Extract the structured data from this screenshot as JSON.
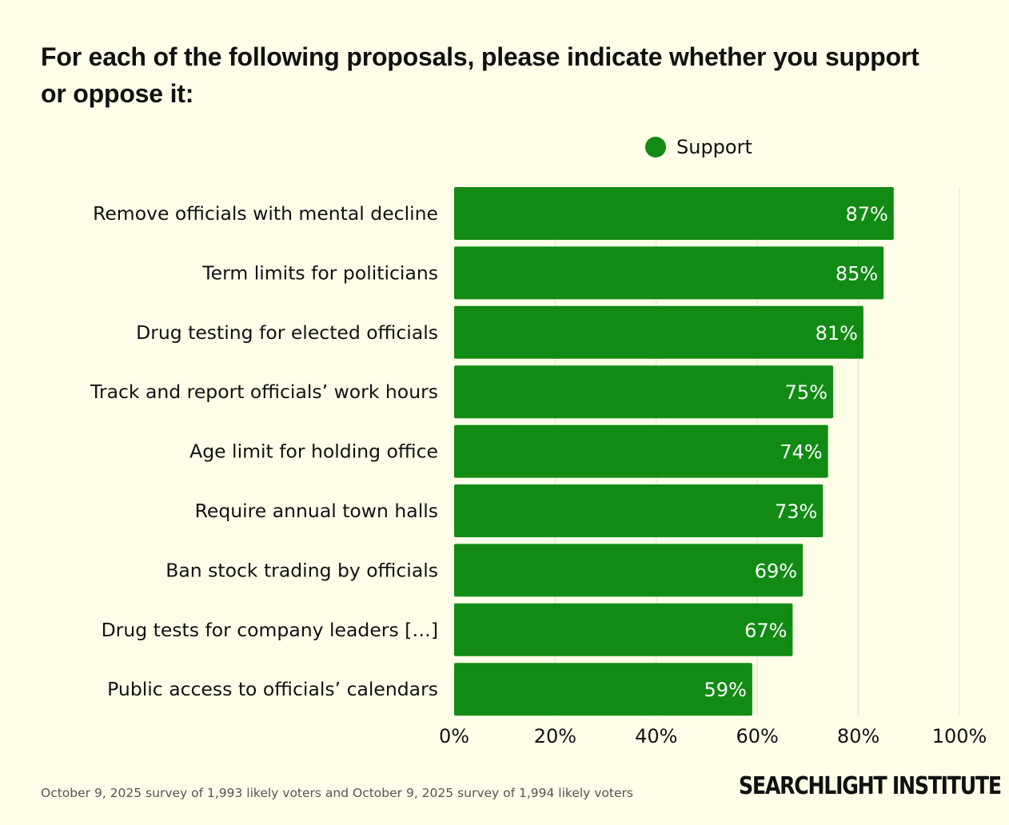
{
  "chart_data": {
    "type": "bar",
    "orientation": "horizontal",
    "title": "For each of the following proposals, please indicate whether you support or oppose it:",
    "categories": [
      "Remove officials with mental decline",
      "Term limits for politicians",
      "Drug testing for elected officials",
      "Track and report officials’ work hours",
      "Age limit for holding office",
      "Require annual town halls",
      "Ban stock trading by officials",
      "Drug tests for company leaders […]",
      "Public access to officials’ calendars"
    ],
    "series": [
      {
        "name": "Support",
        "color": "#128b14",
        "values": [
          87,
          85,
          81,
          75,
          74,
          73,
          69,
          67,
          59
        ],
        "labels": [
          "87%",
          "85%",
          "81%",
          "75%",
          "74%",
          "73%",
          "69%",
          "67%",
          "59%"
        ]
      }
    ],
    "xlim": [
      0,
      100
    ],
    "xticks": [
      0,
      20,
      40,
      60,
      80,
      100
    ],
    "xtick_labels": [
      "0%",
      "20%",
      "40%",
      "60%",
      "80%",
      "100%"
    ],
    "grid": true,
    "legend_position": "top-center"
  },
  "footer": {
    "note": "October 9, 2025 survey of 1,993 likely voters and October 9, 2025 survey of 1,994 likely voters",
    "brand": "SEARCHLIGHT INSTITUTE"
  },
  "colors": {
    "background": "#fefee8",
    "bar": "#128b14",
    "grid": "#e2e2d2",
    "text": "#111111"
  }
}
